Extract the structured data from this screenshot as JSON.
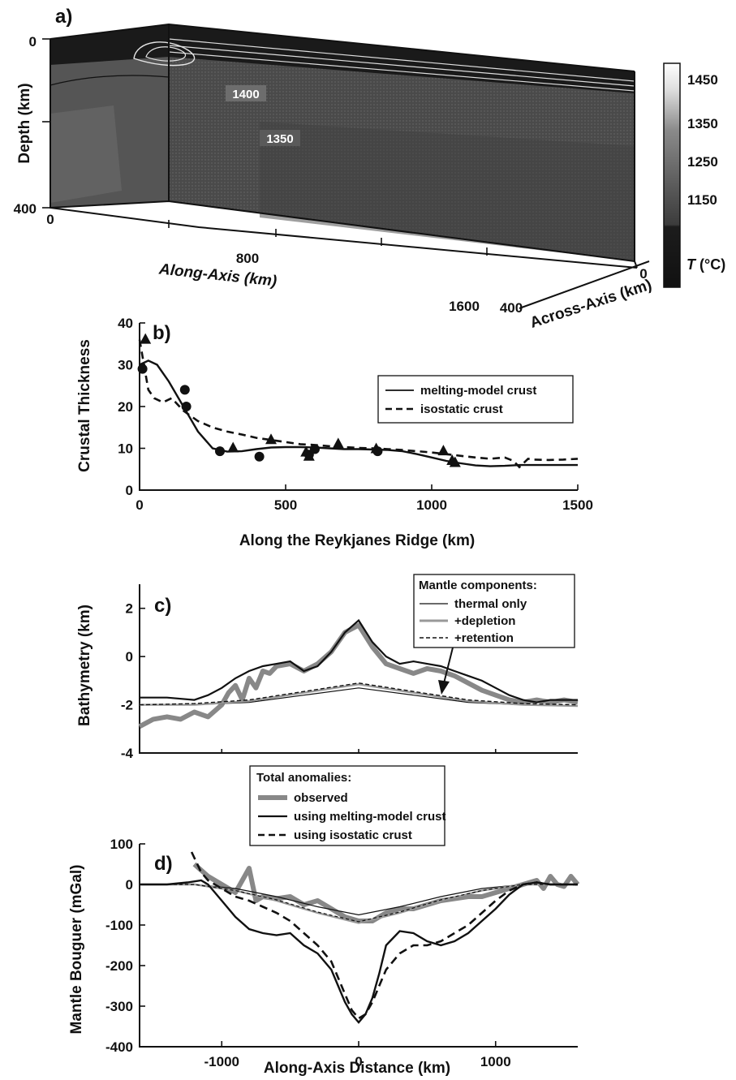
{
  "chart_data": [
    {
      "panel": "a)",
      "type": "heatmap",
      "y_label": "Depth (km)",
      "y_ticks": [
        "0",
        "400"
      ],
      "along_axis_label": "Along-Axis (km)",
      "along_axis_ticks": [
        "0",
        "800",
        "1600"
      ],
      "across_axis_label": "Across-Axis (km)",
      "across_axis_ticks": [
        "400",
        "0"
      ],
      "contour_labels": [
        "1400",
        "1350"
      ],
      "colorbar": {
        "label_prefix": "T",
        "label_suffix": "(°C)",
        "ticks": [
          "1450",
          "1350",
          "1250",
          "1150"
        ]
      },
      "colors": {
        "cold": "#151515",
        "mid": "#4b4b4b",
        "warm": "#6e6e6e",
        "hot": "#ffffff"
      }
    },
    {
      "panel": "b)",
      "type": "line",
      "xlabel": "Along the Reykjanes Ridge (km)",
      "ylabel": "Crustal Thickness",
      "xlim": [
        0,
        1500
      ],
      "ylim": [
        0,
        40
      ],
      "x_ticks": [
        0,
        500,
        1000,
        1500
      ],
      "y_ticks": [
        0,
        10,
        20,
        30,
        40
      ],
      "series": [
        {
          "name": "melting-model crust",
          "style": "solid",
          "x": [
            0,
            30,
            60,
            100,
            150,
            200,
            250,
            300,
            350,
            400,
            450,
            500,
            550,
            600,
            650,
            700,
            750,
            800,
            850,
            900,
            950,
            1000,
            1050,
            1100,
            1150,
            1200,
            1250,
            1300,
            1350,
            1400,
            1450,
            1500
          ],
          "y": [
            30,
            31,
            30,
            26,
            20,
            14,
            10,
            9.2,
            9.3,
            9.8,
            10.2,
            10.3,
            10.3,
            10.2,
            10.0,
            9.8,
            9.8,
            9.7,
            9.6,
            9.3,
            8.6,
            7.8,
            7.0,
            6.4,
            5.9,
            5.7,
            5.8,
            6.0,
            6.0,
            6.0,
            6.0,
            6.0
          ]
        },
        {
          "name": "isostatic crust",
          "style": "dashed",
          "x": [
            0,
            15,
            30,
            50,
            80,
            110,
            150,
            200,
            250,
            300,
            350,
            400,
            450,
            500,
            550,
            600,
            650,
            700,
            750,
            800,
            850,
            900,
            950,
            1000,
            1050,
            1100,
            1150,
            1200,
            1250,
            1280,
            1300,
            1330,
            1350,
            1400,
            1450,
            1500
          ],
          "y": [
            36,
            30,
            24,
            22,
            21,
            22,
            19,
            16.5,
            15,
            14,
            13.3,
            12.5,
            12,
            11.5,
            11,
            10.8,
            10.5,
            10.3,
            10.1,
            10,
            9.8,
            9.6,
            9.3,
            9.0,
            8.6,
            8.2,
            7.8,
            7.5,
            7.8,
            7.0,
            5.5,
            7.5,
            7.3,
            7.2,
            7.3,
            7.5
          ]
        }
      ],
      "circles": {
        "x": [
          10,
          155,
          160,
          275,
          410,
          580,
          600,
          815
        ],
        "y": [
          29,
          24,
          20,
          9.3,
          8,
          8.5,
          9.8,
          9.3
        ]
      },
      "triangles": {
        "x": [
          20,
          320,
          450,
          570,
          580,
          680,
          810,
          1040,
          1070,
          1080
        ],
        "y": [
          36,
          10,
          12,
          9,
          8,
          11,
          9.8,
          9.3,
          7,
          6.5
        ]
      },
      "legend": [
        "melting-model crust",
        "isostatic crust"
      ]
    },
    {
      "panel": "c)",
      "type": "line",
      "xlabel": "",
      "ylabel": "Bathymetry (km)",
      "xlim": [
        -1600,
        1600
      ],
      "ylim": [
        -4,
        3
      ],
      "y_ticks": [
        -4,
        -2,
        0,
        2
      ],
      "legend_title": "Mantle components:",
      "legend": [
        "thermal only",
        "+depletion",
        "+retention"
      ],
      "series": [
        {
          "name": "observed",
          "style": "shaded",
          "x": [
            -1600,
            -1500,
            -1400,
            -1300,
            -1200,
            -1100,
            -1000,
            -950,
            -900,
            -850,
            -800,
            -750,
            -700,
            -650,
            -600,
            -500,
            -400,
            -300,
            -200,
            -100,
            0,
            100,
            200,
            300,
            400,
            500,
            600,
            700,
            800,
            900,
            1000,
            1100,
            1200,
            1300,
            1400,
            1500,
            1600
          ],
          "y": [
            -2.9,
            -2.6,
            -2.5,
            -2.6,
            -2.3,
            -2.5,
            -2.0,
            -1.5,
            -1.2,
            -1.8,
            -0.9,
            -1.3,
            -0.6,
            -0.7,
            -0.4,
            -0.3,
            -0.6,
            -0.3,
            0.2,
            1.0,
            1.3,
            0.4,
            -0.3,
            -0.5,
            -0.7,
            -0.5,
            -0.6,
            -0.8,
            -1.1,
            -1.4,
            -1.6,
            -1.8,
            -1.9,
            -1.8,
            -1.9,
            -1.8,
            -1.9
          ]
        },
        {
          "name": "melting-model crust",
          "style": "solid",
          "x": [
            -1600,
            -1400,
            -1200,
            -1100,
            -1000,
            -900,
            -800,
            -700,
            -600,
            -500,
            -400,
            -300,
            -200,
            -100,
            0,
            100,
            200,
            300,
            400,
            500,
            600,
            700,
            800,
            900,
            1000,
            1100,
            1200,
            1300,
            1400,
            1600
          ],
          "y": [
            -1.7,
            -1.7,
            -1.8,
            -1.6,
            -1.3,
            -0.9,
            -0.6,
            -0.4,
            -0.3,
            -0.2,
            -0.6,
            -0.4,
            0.2,
            1.0,
            1.5,
            0.6,
            0.0,
            -0.3,
            -0.2,
            -0.3,
            -0.4,
            -0.6,
            -0.8,
            -1.0,
            -1.3,
            -1.6,
            -1.8,
            -1.9,
            -1.8,
            -1.8
          ]
        },
        {
          "name": "thermal only",
          "style": "thin",
          "x": [
            -1600,
            -1200,
            -800,
            -400,
            0,
            400,
            800,
            1200,
            1600
          ],
          "y": [
            -2.0,
            -2.0,
            -1.9,
            -1.6,
            -1.3,
            -1.6,
            -1.9,
            -2.0,
            -2.05
          ]
        },
        {
          "name": "+depletion",
          "style": "gray",
          "x": [
            -1600,
            -1200,
            -800,
            -400,
            0,
            400,
            800,
            1200,
            1600
          ],
          "y": [
            -2.0,
            -2.0,
            -1.85,
            -1.5,
            -1.15,
            -1.5,
            -1.85,
            -2.0,
            -2.05
          ]
        },
        {
          "name": "+retention",
          "style": "dashed",
          "x": [
            -1600,
            -1200,
            -800,
            -400,
            0,
            400,
            800,
            1200,
            1600
          ],
          "y": [
            -2.0,
            -1.95,
            -1.8,
            -1.45,
            -1.1,
            -1.45,
            -1.8,
            -1.95,
            -2.0
          ]
        }
      ]
    },
    {
      "panel": "d)",
      "type": "line",
      "xlabel": "Along-Axis Distance (km)",
      "ylabel": "Mantle Bouguer (mGal)",
      "xlim": [
        -1600,
        1600
      ],
      "ylim": [
        -400,
        100
      ],
      "x_ticks": [
        -1000,
        0,
        1000
      ],
      "y_ticks": [
        -400,
        -300,
        -200,
        -100,
        0,
        100
      ],
      "legend_title": "Total anomalies:",
      "legend": [
        "observed",
        "using melting-model crust",
        "using isostatic crust"
      ],
      "series": [
        {
          "name": "observed",
          "style": "shaded",
          "x": [
            -1200,
            -1100,
            -1000,
            -900,
            -850,
            -800,
            -750,
            -700,
            -600,
            -500,
            -400,
            -300,
            -200,
            -100,
            0,
            100,
            200,
            300,
            400,
            500,
            600,
            700,
            800,
            900,
            1000,
            1100,
            1200,
            1300,
            1350,
            1400,
            1450,
            1500,
            1550,
            1600
          ],
          "y": [
            50,
            20,
            0,
            -20,
            10,
            40,
            -40,
            -30,
            -35,
            -30,
            -50,
            -40,
            -60,
            -80,
            -90,
            -90,
            -70,
            -60,
            -60,
            -50,
            -40,
            -35,
            -30,
            -30,
            -20,
            -10,
            0,
            10,
            -10,
            20,
            0,
            -5,
            20,
            0
          ]
        },
        {
          "name": "using melting-model crust",
          "style": "solid",
          "x": [
            -1600,
            -1400,
            -1250,
            -1150,
            -1100,
            -1000,
            -900,
            -800,
            -700,
            -600,
            -500,
            -400,
            -300,
            -200,
            -150,
            -100,
            -50,
            0,
            50,
            100,
            150,
            200,
            300,
            400,
            500,
            600,
            700,
            800,
            900,
            1000,
            1100,
            1200,
            1300,
            1400,
            1600
          ],
          "y": [
            0,
            0,
            5,
            10,
            0,
            -40,
            -80,
            -110,
            -120,
            -125,
            -120,
            -150,
            -170,
            -210,
            -250,
            -290,
            -320,
            -340,
            -320,
            -280,
            -220,
            -150,
            -115,
            -120,
            -140,
            -150,
            -140,
            -120,
            -90,
            -60,
            -25,
            0,
            5,
            0,
            0
          ]
        },
        {
          "name": "using isostatic crust",
          "style": "dashed",
          "x": [
            -1220,
            -1150,
            -1100,
            -1000,
            -900,
            -800,
            -700,
            -600,
            -500,
            -400,
            -300,
            -200,
            -150,
            -100,
            -50,
            0,
            50,
            100,
            150,
            200,
            300,
            400,
            500,
            600,
            700,
            800,
            900,
            1000,
            1100,
            1200,
            1300,
            1400,
            1500,
            1600
          ],
          "y": [
            80,
            30,
            10,
            -10,
            -30,
            -40,
            -55,
            -70,
            -90,
            -120,
            -150,
            -190,
            -230,
            -270,
            -310,
            -330,
            -320,
            -290,
            -250,
            -210,
            -170,
            -150,
            -150,
            -140,
            -120,
            -100,
            -70,
            -40,
            -15,
            0,
            5,
            0,
            0,
            0
          ]
        },
        {
          "name": "thermal only",
          "style": "thin",
          "x": [
            -1600,
            -1200,
            -900,
            -600,
            -300,
            0,
            300,
            600,
            900,
            1200,
            1600
          ],
          "y": [
            0,
            0,
            -10,
            -30,
            -55,
            -75,
            -55,
            -30,
            -10,
            0,
            0
          ]
        },
        {
          "name": "+depletion",
          "style": "gray",
          "x": [
            -1600,
            -1200,
            -900,
            -600,
            -300,
            0,
            300,
            600,
            900,
            1200,
            1600
          ],
          "y": [
            0,
            0,
            -15,
            -40,
            -70,
            -95,
            -70,
            -40,
            -15,
            0,
            0
          ]
        },
        {
          "name": "+retention",
          "style": "dashed-thin",
          "x": [
            -1600,
            -1200,
            -900,
            -600,
            -300,
            0,
            300,
            600,
            900,
            1200,
            1600
          ],
          "y": [
            0,
            0,
            -15,
            -38,
            -68,
            -92,
            -68,
            -38,
            -15,
            0,
            0
          ]
        }
      ]
    }
  ]
}
